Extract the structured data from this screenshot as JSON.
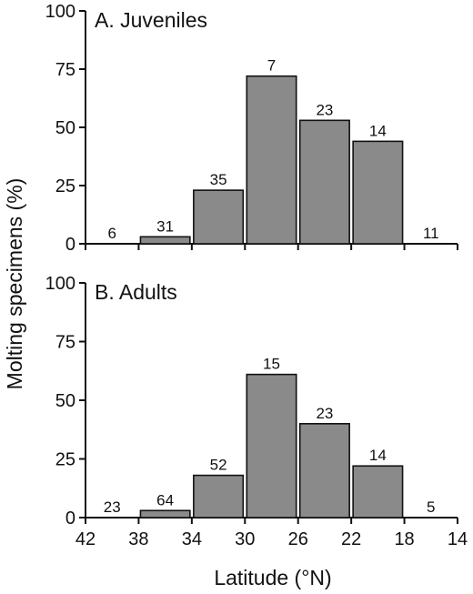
{
  "chart_data": [
    {
      "type": "bar",
      "title": "A. Juveniles",
      "ylabel": "Molting specimens (%)",
      "xlabel": "Latitude (°N)",
      "ylim": [
        0,
        100
      ],
      "yticks": [
        0,
        25,
        50,
        75,
        100
      ],
      "xticks": [
        42,
        38,
        34,
        30,
        26,
        22,
        18,
        14
      ],
      "bins": [
        [
          42,
          38
        ],
        [
          38,
          34
        ],
        [
          34,
          30
        ],
        [
          30,
          26
        ],
        [
          26,
          22
        ],
        [
          22,
          18
        ],
        [
          18,
          14
        ]
      ],
      "values": [
        0,
        3,
        23,
        72,
        53,
        44,
        0
      ],
      "sample_sizes": [
        "6",
        "31",
        "35",
        "7",
        "23",
        "14",
        "11"
      ],
      "bar_color": "#8a8a8a"
    },
    {
      "type": "bar",
      "title": "B. Adults",
      "ylabel": "Molting specimens (%)",
      "xlabel": "Latitude (°N)",
      "ylim": [
        0,
        100
      ],
      "yticks": [
        0,
        25,
        50,
        75,
        100
      ],
      "xticks": [
        42,
        38,
        34,
        30,
        26,
        22,
        18,
        14
      ],
      "bins": [
        [
          42,
          38
        ],
        [
          38,
          34
        ],
        [
          34,
          30
        ],
        [
          30,
          26
        ],
        [
          26,
          22
        ],
        [
          22,
          18
        ],
        [
          18,
          14
        ]
      ],
      "values": [
        0,
        3,
        18,
        61,
        40,
        22,
        0
      ],
      "sample_sizes": [
        "23",
        "64",
        "52",
        "15",
        "23",
        "14",
        "5"
      ],
      "bar_color": "#8a8a8a"
    }
  ],
  "labels": {
    "ylabel": "Molting specimens (%)",
    "xlabel": "Latitude (°N)"
  }
}
